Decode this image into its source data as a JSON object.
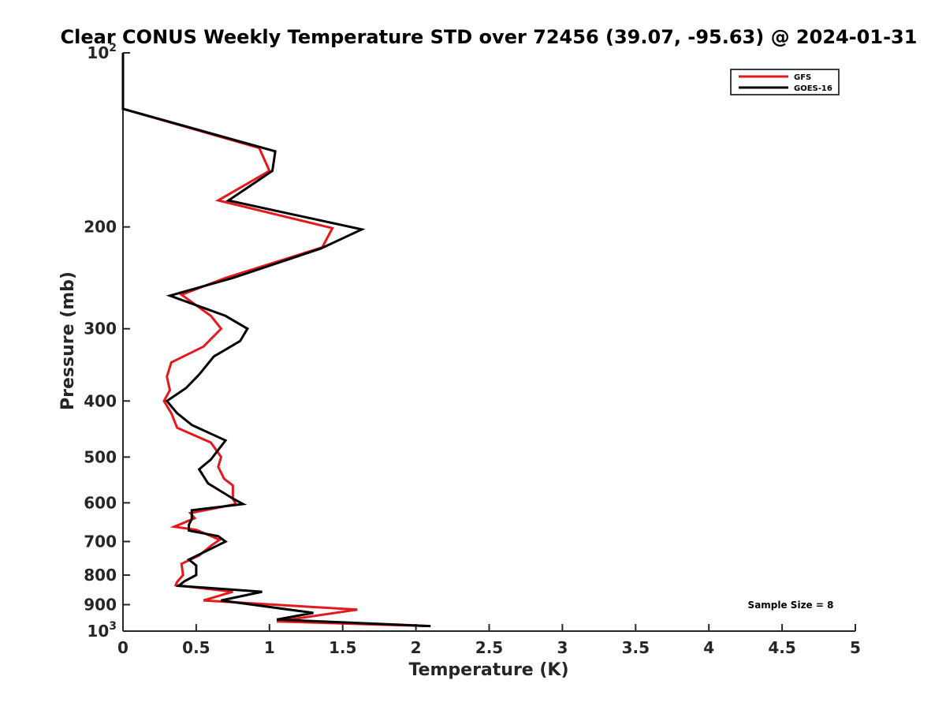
{
  "chart_data": {
    "type": "line",
    "title": "Clear CONUS Weekly Temperature STD over 72456 (39.07, -95.63) @ 2024-01-31",
    "xlabel": "Temperature (K)",
    "ylabel": "Pressure (mb)",
    "xlim": [
      0,
      5
    ],
    "ylim": [
      100,
      1000
    ],
    "yscale": "log",
    "y_reversed": true,
    "x_ticks": [
      "0",
      "0.5",
      "1",
      "1.5",
      "2",
      "2.5",
      "3",
      "3.5",
      "4",
      "4.5",
      "5"
    ],
    "y_ticks": [
      {
        "value": 100,
        "label": "10",
        "exp": "2"
      },
      {
        "value": 200,
        "label": "200"
      },
      {
        "value": 300,
        "label": "300"
      },
      {
        "value": 400,
        "label": "400"
      },
      {
        "value": 500,
        "label": "500"
      },
      {
        "value": 600,
        "label": "600"
      },
      {
        "value": 700,
        "label": "700"
      },
      {
        "value": 800,
        "label": "800"
      },
      {
        "value": 900,
        "label": "900"
      },
      {
        "value": 1000,
        "label": "10",
        "exp": "3"
      }
    ],
    "grid": false,
    "legend_position": "top-right",
    "annotation": "Sample Size = 8",
    "series": [
      {
        "name": "GFS",
        "color": "#e31a1c",
        "points": [
          [
            0,
            100
          ],
          [
            0,
            125
          ],
          [
            0.93,
            146
          ],
          [
            1.0,
            160
          ],
          [
            0.65,
            180
          ],
          [
            1.43,
            201
          ],
          [
            1.36,
            217
          ],
          [
            0.7,
            245
          ],
          [
            0.4,
            262
          ],
          [
            0.6,
            285
          ],
          [
            0.67,
            300
          ],
          [
            0.55,
            322
          ],
          [
            0.33,
            343
          ],
          [
            0.3,
            363
          ],
          [
            0.32,
            383
          ],
          [
            0.28,
            400
          ],
          [
            0.33,
            420
          ],
          [
            0.37,
            445
          ],
          [
            0.6,
            472
          ],
          [
            0.67,
            500
          ],
          [
            0.65,
            520
          ],
          [
            0.69,
            545
          ],
          [
            0.75,
            560
          ],
          [
            0.75,
            590
          ],
          [
            0.77,
            603
          ],
          [
            0.46,
            625
          ],
          [
            0.49,
            638
          ],
          [
            0.35,
            660
          ],
          [
            0.5,
            668
          ],
          [
            0.66,
            695
          ],
          [
            0.6,
            712
          ],
          [
            0.52,
            740
          ],
          [
            0.4,
            765
          ],
          [
            0.41,
            800
          ],
          [
            0.37,
            822
          ],
          [
            0.36,
            833
          ],
          [
            0.75,
            855
          ],
          [
            0.55,
            885
          ],
          [
            1.6,
            918
          ],
          [
            1.05,
            962
          ],
          [
            2.08,
            980
          ]
        ]
      },
      {
        "name": "GOES-16",
        "color": "#000000",
        "points": [
          [
            0,
            100
          ],
          [
            0,
            125
          ],
          [
            1.04,
            148
          ],
          [
            1.02,
            160
          ],
          [
            0.72,
            180
          ],
          [
            1.63,
            202
          ],
          [
            1.35,
            218
          ],
          [
            0.75,
            245
          ],
          [
            0.32,
            263
          ],
          [
            0.7,
            285
          ],
          [
            0.85,
            300
          ],
          [
            0.8,
            315
          ],
          [
            0.62,
            335
          ],
          [
            0.52,
            360
          ],
          [
            0.43,
            380
          ],
          [
            0.3,
            400
          ],
          [
            0.37,
            420
          ],
          [
            0.47,
            440
          ],
          [
            0.7,
            468
          ],
          [
            0.6,
            505
          ],
          [
            0.52,
            525
          ],
          [
            0.58,
            555
          ],
          [
            0.75,
            590
          ],
          [
            0.82,
            603
          ],
          [
            0.47,
            618
          ],
          [
            0.47,
            640
          ],
          [
            0.45,
            655
          ],
          [
            0.45,
            670
          ],
          [
            0.65,
            685
          ],
          [
            0.7,
            700
          ],
          [
            0.45,
            752
          ],
          [
            0.5,
            770
          ],
          [
            0.5,
            800
          ],
          [
            0.42,
            820
          ],
          [
            0.38,
            835
          ],
          [
            0.95,
            855
          ],
          [
            0.67,
            885
          ],
          [
            1.3,
            930
          ],
          [
            1.05,
            955
          ],
          [
            2.1,
            980
          ]
        ]
      }
    ]
  }
}
